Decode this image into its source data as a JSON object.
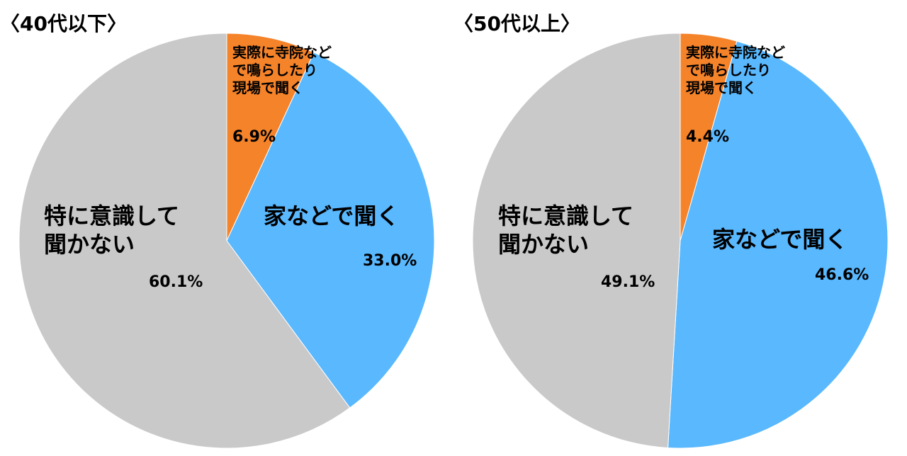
{
  "chart_data": [
    {
      "type": "pie",
      "title": "〈40代以下〉",
      "categories": [
        "実際に寺院など\nで鳴らしたり\n現場で聞く",
        "家などで聞く",
        "特に意識して\n聞かない"
      ],
      "values": [
        6.9,
        33.0,
        60.1
      ],
      "value_labels": [
        "6.9%",
        "33.0%",
        "60.1%"
      ],
      "colors": [
        "#f5832a",
        "#59b8fe",
        "#c9c9c9"
      ]
    },
    {
      "type": "pie",
      "title": "〈50代以上〉",
      "categories": [
        "実際に寺院など\nで鳴らしたり\n現場で聞く",
        "家などで聞く",
        "特に意識して\n聞かない"
      ],
      "values": [
        4.4,
        46.6,
        49.1
      ],
      "value_labels": [
        "4.4%",
        "46.6%",
        "49.1%"
      ],
      "colors": [
        "#f5832a",
        "#59b8fe",
        "#c9c9c9"
      ]
    }
  ]
}
